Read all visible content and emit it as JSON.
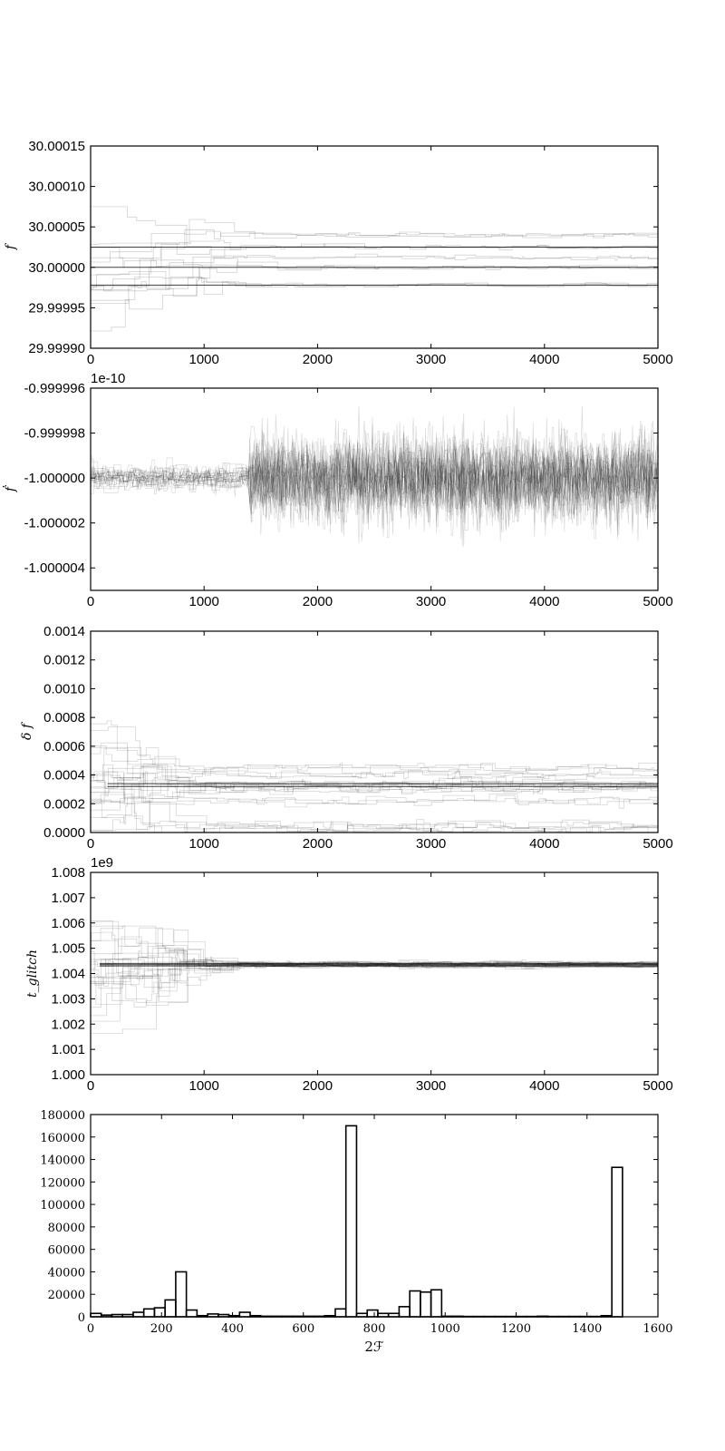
{
  "chart_data": [
    {
      "type": "line",
      "description_key": "walkers-f",
      "ylabel": "f",
      "xlim": [
        0,
        5000
      ],
      "ylim": [
        29.9999,
        30.00015
      ],
      "xticks": [
        "0",
        "1000",
        "2000",
        "3000",
        "4000",
        "5000"
      ],
      "yticks": [
        "29.99990",
        "29.99995",
        "30.00000",
        "30.00005",
        "30.00010",
        "30.00015"
      ],
      "offset_text": "",
      "final_values": [
        30.0,
        30.000025,
        29.999978,
        30.00004,
        30.000012
      ],
      "grid": false
    },
    {
      "type": "line",
      "description_key": "walkers-fdot",
      "ylabel": "ḟ",
      "xlim": [
        0,
        5000
      ],
      "ylim": [
        -1.000005,
        -0.999996
      ],
      "xticks": [
        "0",
        "1000",
        "2000",
        "3000",
        "4000",
        "5000"
      ],
      "yticks": [
        "-1.000004",
        "-1.000002",
        "-1.000000",
        "-0.999998",
        "-0.999996"
      ],
      "offset_text": "1e-10",
      "center": -1.0,
      "grid": false
    },
    {
      "type": "line",
      "description_key": "walkers-delta-f",
      "ylabel": "δ f",
      "xlim": [
        0,
        5000
      ],
      "ylim": [
        0,
        0.0014
      ],
      "xticks": [
        "0",
        "1000",
        "2000",
        "3000",
        "4000",
        "5000"
      ],
      "yticks": [
        "0.0000",
        "0.0002",
        "0.0004",
        "0.0006",
        "0.0008",
        "0.0010",
        "0.0012",
        "0.0014"
      ],
      "offset_text": "",
      "final_values": [
        0.00034,
        0.00032,
        0.0003,
        0.00022,
        0.0004,
        0.00045,
        5e-05,
        2e-05
      ],
      "grid": false
    },
    {
      "type": "line",
      "description_key": "walkers-tglitch",
      "ylabel": "t_glitch",
      "xlim": [
        0,
        5000
      ],
      "ylim": [
        1.0,
        1.008
      ],
      "xticks": [
        "0",
        "1000",
        "2000",
        "3000",
        "4000",
        "5000"
      ],
      "yticks": [
        "1.000",
        "1.001",
        "1.002",
        "1.003",
        "1.004",
        "1.005",
        "1.006",
        "1.007",
        "1.008"
      ],
      "offset_text": "1e9",
      "final_values": [
        1.00435,
        1.0044,
        1.0043
      ],
      "grid": false
    },
    {
      "type": "bar",
      "description_key": "histogram-2F",
      "xlabel": "2ℱ",
      "xlim": [
        0,
        1600
      ],
      "ylim": [
        0,
        180000
      ],
      "xticks": [
        "0",
        "200",
        "400",
        "600",
        "800",
        "1000",
        "1200",
        "1400",
        "1600"
      ],
      "yticks": [
        "0",
        "20000",
        "40000",
        "60000",
        "80000",
        "100000",
        "120000",
        "140000",
        "160000",
        "180000"
      ],
      "bin_width": 30,
      "bin_starts": [
        0,
        30,
        60,
        90,
        120,
        150,
        180,
        210,
        240,
        270,
        300,
        330,
        360,
        390,
        420,
        450,
        480,
        510,
        540,
        570,
        600,
        630,
        660,
        690,
        720,
        750,
        780,
        810,
        840,
        870,
        900,
        930,
        960,
        990,
        1020,
        1050,
        1080,
        1110,
        1140,
        1170,
        1200,
        1230,
        1260,
        1290,
        1320,
        1350,
        1380,
        1410,
        1440,
        1470,
        1500
      ],
      "values": [
        3000,
        1500,
        2000,
        2000,
        4000,
        7000,
        8000,
        15000,
        40000,
        6000,
        1000,
        2500,
        2000,
        1000,
        4000,
        1000,
        500,
        500,
        500,
        500,
        500,
        500,
        1000,
        7000,
        170000,
        3000,
        6000,
        3000,
        3000,
        9000,
        23000,
        22000,
        24000,
        500,
        500,
        300,
        300,
        300,
        300,
        300,
        300,
        300,
        500,
        300,
        300,
        300,
        300,
        300,
        1000,
        133000,
        0
      ],
      "grid": false
    }
  ]
}
